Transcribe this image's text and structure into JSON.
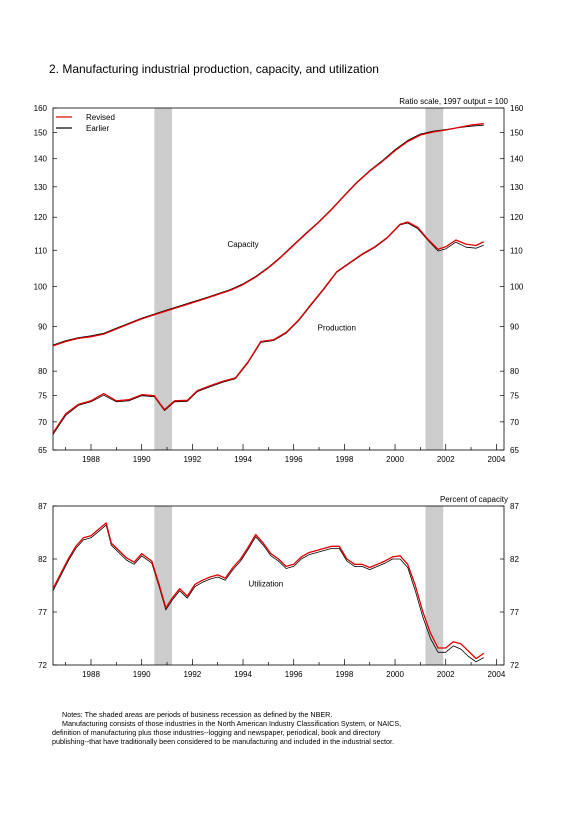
{
  "title": "2. Manufacturing industrial production, capacity, and utilization",
  "notes": [
    "Notes: The shaded areas are periods of business recession as defined by the NBER.",
    "Manufacturing consists of those industries in the North American Industry Classification System, or NAICS,",
    "definition of manufacturing plus those industries--logging and newspaper, periodical, book and directory",
    "publishing--that have traditionally been considered to be manufacturing and included in the industrial sector."
  ],
  "colors": {
    "revised": "#e00000",
    "earlier": "#000000",
    "recession": "#cccccc"
  },
  "chart_data": [
    {
      "type": "line",
      "scale_note": "Ratio scale, 1997 output = 100",
      "y_scale": "log",
      "ylim": [
        65,
        160
      ],
      "xlim": [
        1986.5,
        2004.3
      ],
      "yticks": [
        65,
        70,
        75,
        80,
        90,
        100,
        110,
        120,
        130,
        140,
        150,
        160
      ],
      "xticks": [
        "1988",
        "1990",
        "1992",
        "1994",
        "1996",
        "1998",
        "2000",
        "2002",
        "2004"
      ],
      "recessions": [
        [
          1990.5,
          1991.2
        ],
        [
          2001.2,
          2001.9
        ]
      ],
      "legend": {
        "position": "top-left",
        "entries": [
          "Revised",
          "Earlier"
        ]
      },
      "annotations": [
        {
          "text": "Capacity",
          "x": 1994,
          "y": 111
        },
        {
          "text": "Production",
          "x": 1997.7,
          "y": 89
        }
      ],
      "series": [
        {
          "name": "Revised",
          "label": "Capacity",
          "x": [
            1986.5,
            1987,
            1987.5,
            1988,
            1988.5,
            1989,
            1989.5,
            1990,
            1990.5,
            1991,
            1991.5,
            1992,
            1992.5,
            1993,
            1993.5,
            1994,
            1994.5,
            1995,
            1995.5,
            1996,
            1996.5,
            1997,
            1997.5,
            1998,
            1998.5,
            1999,
            1999.5,
            2000,
            2000.5,
            2001,
            2001.5,
            2002,
            2002.5,
            2003,
            2003.5
          ],
          "y": [
            85.5,
            86.5,
            87.2,
            87.6,
            88.2,
            89.4,
            90.6,
            91.8,
            92.8,
            93.8,
            94.8,
            95.8,
            96.8,
            97.9,
            99.0,
            100.5,
            102.5,
            105.0,
            108.0,
            111.5,
            115.0,
            118.5,
            122.5,
            127.0,
            131.5,
            135.5,
            139.0,
            143.0,
            146.5,
            149.0,
            150.2,
            151.0,
            152.0,
            153.0,
            153.5
          ]
        },
        {
          "name": "Earlier",
          "label": "Capacity",
          "x": [
            1986.5,
            1987,
            1987.5,
            1988,
            1988.5,
            1989,
            1989.5,
            1990,
            1990.5,
            1991,
            1991.5,
            1992,
            1992.5,
            1993,
            1993.5,
            1994,
            1994.5,
            1995,
            1995.5,
            1996,
            1996.5,
            1997,
            1997.5,
            1998,
            1998.5,
            1999,
            1999.5,
            2000,
            2000.5,
            2001,
            2001.5,
            2002,
            2002.5,
            2003,
            2003.5
          ],
          "y": [
            85.7,
            86.7,
            87.4,
            87.8,
            88.4,
            89.6,
            90.8,
            92.0,
            93.0,
            94.0,
            95.0,
            96.0,
            97.0,
            98.1,
            99.2,
            100.7,
            102.7,
            105.2,
            108.2,
            111.7,
            115.2,
            118.7,
            122.7,
            127.2,
            131.7,
            135.7,
            139.3,
            143.4,
            146.9,
            149.4,
            150.5,
            151.2,
            151.9,
            152.5,
            152.9
          ]
        },
        {
          "name": "Revised",
          "label": "Production",
          "x": [
            1986.5,
            1987,
            1987.5,
            1988,
            1988.5,
            1989,
            1989.5,
            1990,
            1990.5,
            1990.9,
            1991.3,
            1991.8,
            1992.2,
            1992.7,
            1993.2,
            1993.7,
            1994.2,
            1994.7,
            1995.2,
            1995.7,
            1996.2,
            1996.7,
            1997.2,
            1997.7,
            1998.2,
            1998.7,
            1999.2,
            1999.7,
            2000.2,
            2000.5,
            2000.9,
            2001.3,
            2001.7,
            2002,
            2002.4,
            2002.8,
            2003.2,
            2003.5
          ],
          "y": [
            68.0,
            71.5,
            73.3,
            74.0,
            75.4,
            74.0,
            74.2,
            75.2,
            75.0,
            72.3,
            74.0,
            74.1,
            76.0,
            77.0,
            77.9,
            78.6,
            82.0,
            86.5,
            86.9,
            88.6,
            91.6,
            95.5,
            99.5,
            104.0,
            106.4,
            108.9,
            111.0,
            113.8,
            117.8,
            118.5,
            116.8,
            113.2,
            110.3,
            111.0,
            113.0,
            111.8,
            111.4,
            112.5
          ]
        },
        {
          "name": "Earlier",
          "label": "Production",
          "x": [
            1986.5,
            1987,
            1987.5,
            1988,
            1988.5,
            1989,
            1989.5,
            1990,
            1990.5,
            1990.9,
            1991.3,
            1991.8,
            1992.2,
            1992.7,
            1993.2,
            1993.7,
            1994.2,
            1994.7,
            1995.2,
            1995.7,
            1996.2,
            1996.7,
            1997.2,
            1997.7,
            1998.2,
            1998.7,
            1999.2,
            1999.7,
            2000.2,
            2000.5,
            2000.9,
            2001.3,
            2001.7,
            2002,
            2002.4,
            2002.8,
            2003.2,
            2003.5
          ],
          "y": [
            67.7,
            71.2,
            73.1,
            73.8,
            75.1,
            73.8,
            74.0,
            75.0,
            74.8,
            72.1,
            73.8,
            73.9,
            75.8,
            76.8,
            77.7,
            78.4,
            81.8,
            86.3,
            86.7,
            88.4,
            91.4,
            95.3,
            99.3,
            103.8,
            106.2,
            108.7,
            110.8,
            113.6,
            117.6,
            118.2,
            116.4,
            112.9,
            109.8,
            110.4,
            112.4,
            110.9,
            110.6,
            111.5
          ]
        }
      ]
    },
    {
      "type": "line",
      "scale_note": "Percent of capacity",
      "ylim": [
        72,
        87
      ],
      "xlim": [
        1986.5,
        2004.3
      ],
      "yticks": [
        72,
        77,
        82,
        87
      ],
      "xticks": [
        "1988",
        "1990",
        "1992",
        "1994",
        "1996",
        "1998",
        "2000",
        "2002",
        "2004"
      ],
      "recessions": [
        [
          1990.5,
          1991.2
        ],
        [
          2001.2,
          2001.9
        ]
      ],
      "annotations": [
        {
          "text": "Utilization",
          "x": 1994.9,
          "y": 79.4
        }
      ],
      "series": [
        {
          "name": "Revised",
          "x": [
            1986.5,
            1986.8,
            1987.1,
            1987.4,
            1987.7,
            1988.0,
            1988.3,
            1988.6,
            1988.8,
            1989.1,
            1989.4,
            1989.7,
            1990.0,
            1990.4,
            1990.7,
            1990.95,
            1991.2,
            1991.5,
            1991.8,
            1992.1,
            1992.4,
            1992.7,
            1993.0,
            1993.3,
            1993.6,
            1993.9,
            1994.2,
            1994.5,
            1994.8,
            1995.1,
            1995.4,
            1995.7,
            1996.0,
            1996.3,
            1996.6,
            1996.9,
            1997.2,
            1997.5,
            1997.8,
            1998.1,
            1998.4,
            1998.7,
            1999.0,
            1999.3,
            1999.6,
            1999.9,
            2000.2,
            2000.5,
            2000.8,
            2001.1,
            2001.4,
            2001.7,
            2002.0,
            2002.3,
            2002.6,
            2002.9,
            2003.2,
            2003.5
          ],
          "y": [
            79.2,
            80.6,
            82.0,
            83.2,
            84.0,
            84.2,
            84.8,
            85.4,
            83.5,
            82.8,
            82.1,
            81.7,
            82.5,
            81.8,
            79.5,
            77.4,
            78.3,
            79.2,
            78.5,
            79.6,
            80.0,
            80.3,
            80.5,
            80.2,
            81.2,
            82.0,
            83.1,
            84.3,
            83.5,
            82.5,
            82.0,
            81.3,
            81.5,
            82.2,
            82.6,
            82.8,
            83.0,
            83.2,
            83.2,
            82.0,
            81.5,
            81.5,
            81.2,
            81.5,
            81.8,
            82.2,
            82.3,
            81.5,
            79.5,
            77.0,
            75.0,
            73.6,
            73.6,
            74.2,
            74.0,
            73.3,
            72.6,
            73.1
          ]
        },
        {
          "name": "Earlier",
          "x": [
            1986.5,
            1986.8,
            1987.1,
            1987.4,
            1987.7,
            1988.0,
            1988.3,
            1988.6,
            1988.8,
            1989.1,
            1989.4,
            1989.7,
            1990.0,
            1990.4,
            1990.7,
            1990.95,
            1991.2,
            1991.5,
            1991.8,
            1992.1,
            1992.4,
            1992.7,
            1993.0,
            1993.3,
            1993.6,
            1993.9,
            1994.2,
            1994.5,
            1994.8,
            1995.1,
            1995.4,
            1995.7,
            1996.0,
            1996.3,
            1996.6,
            1996.9,
            1997.2,
            1997.5,
            1997.8,
            1998.1,
            1998.4,
            1998.7,
            1999.0,
            1999.3,
            1999.6,
            1999.9,
            2000.2,
            2000.5,
            2000.8,
            2001.1,
            2001.4,
            2001.7,
            2002.0,
            2002.3,
            2002.6,
            2002.9,
            2003.2,
            2003.5
          ],
          "y": [
            79.0,
            80.4,
            81.8,
            83.0,
            83.8,
            84.0,
            84.6,
            85.2,
            83.3,
            82.6,
            81.9,
            81.5,
            82.3,
            81.6,
            79.3,
            77.2,
            78.1,
            79.0,
            78.3,
            79.4,
            79.8,
            80.1,
            80.3,
            80.0,
            81.0,
            81.8,
            82.9,
            84.1,
            83.3,
            82.3,
            81.8,
            81.1,
            81.3,
            82.0,
            82.4,
            82.6,
            82.8,
            83.0,
            83.0,
            81.8,
            81.3,
            81.3,
            81.0,
            81.3,
            81.6,
            82.0,
            82.0,
            81.2,
            79.0,
            76.5,
            74.5,
            73.2,
            73.2,
            73.8,
            73.5,
            72.8,
            72.3,
            72.7
          ]
        }
      ]
    }
  ]
}
